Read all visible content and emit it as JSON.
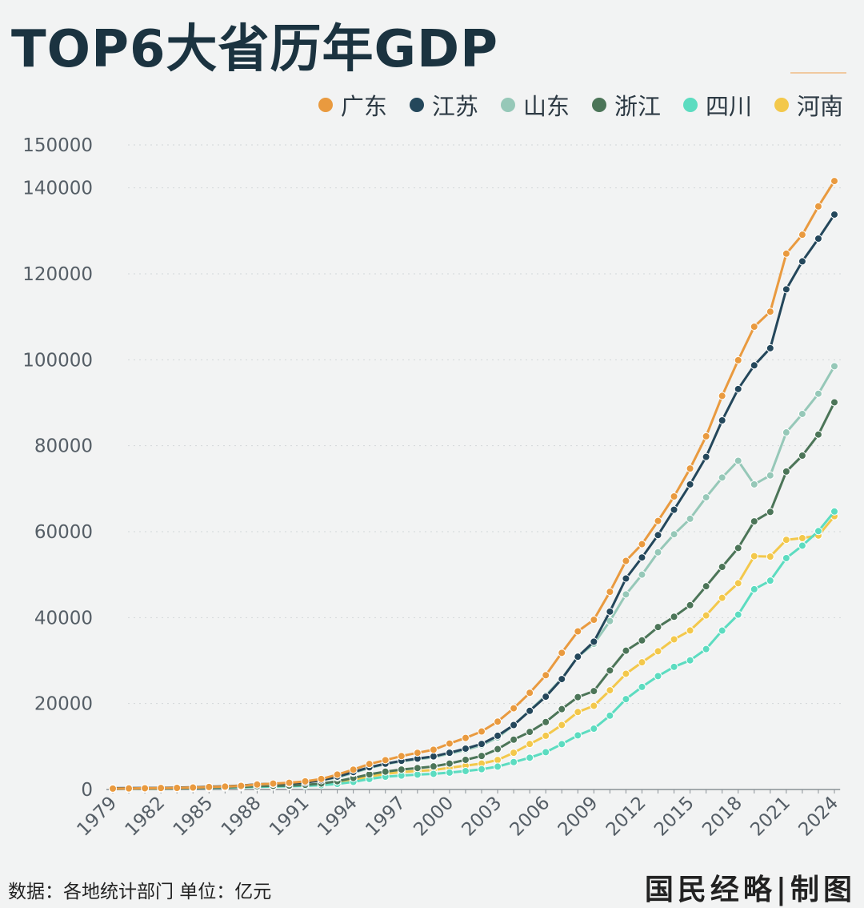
{
  "title": "TOP6大省历年GDP",
  "footer": {
    "source": "数据：各地统计部门  单位：亿元",
    "brand": "国民经略|制图"
  },
  "chart_data": {
    "type": "line",
    "title": "TOP6大省历年GDP",
    "xlabel": "",
    "ylabel": "",
    "ylim": [
      0,
      150000
    ],
    "yticks": [
      0,
      20000,
      40000,
      60000,
      80000,
      100000,
      120000,
      140000,
      150000
    ],
    "x_tick_labels": [
      "1979",
      "1982",
      "1985",
      "1988",
      "1991",
      "1994",
      "1997",
      "2000",
      "2003",
      "2006",
      "2009",
      "2012",
      "2015",
      "2018",
      "2021",
      "2024"
    ],
    "grid": "horizontal dotted",
    "legend_position": "top-right",
    "x": [
      1979,
      1980,
      1981,
      1982,
      1983,
      1984,
      1985,
      1986,
      1987,
      1988,
      1989,
      1990,
      1991,
      1992,
      1993,
      1994,
      1995,
      1996,
      1997,
      1998,
      1999,
      2000,
      2001,
      2002,
      2003,
      2004,
      2005,
      2006,
      2007,
      2008,
      2009,
      2010,
      2011,
      2012,
      2013,
      2014,
      2015,
      2016,
      2017,
      2018,
      2019,
      2020,
      2021,
      2022,
      2023,
      2024
    ],
    "series": [
      {
        "name": "广东",
        "color": "#e99a3f",
        "values": [
          210,
          250,
          290,
          340,
          370,
          460,
          580,
          670,
          850,
          1160,
          1380,
          1560,
          1890,
          2450,
          3470,
          4620,
          5930,
          6830,
          7770,
          8530,
          9250,
          10700,
          12000,
          13500,
          15800,
          18900,
          22500,
          26600,
          31800,
          36800,
          39500,
          46000,
          53200,
          57100,
          62500,
          68200,
          74700,
          82200,
          91600,
          99900,
          107700,
          111200,
          124700,
          129100,
          135700,
          141600
        ]
      },
      {
        "name": "江苏",
        "color": "#24475b",
        "values": [
          300,
          320,
          350,
          380,
          440,
          520,
          650,
          740,
          920,
          1210,
          1320,
          1420,
          1600,
          2140,
          2990,
          4060,
          5160,
          6000,
          6680,
          7200,
          7700,
          8550,
          9510,
          10600,
          12500,
          15000,
          18300,
          21600,
          25700,
          30900,
          34400,
          41400,
          49100,
          54000,
          59200,
          65100,
          71000,
          77400,
          85900,
          93200,
          98700,
          102700,
          116400,
          122900,
          128200,
          133800
        ]
      },
      {
        "name": "山东",
        "color": "#96c8b8",
        "values": [
          220,
          250,
          290,
          320,
          370,
          460,
          570,
          680,
          810,
          1120,
          1290,
          1510,
          1810,
          2200,
          2770,
          3870,
          5000,
          5880,
          6540,
          7020,
          7490,
          8340,
          9200,
          10300,
          12100,
          15000,
          18400,
          21900,
          25800,
          30900,
          33900,
          39200,
          45400,
          50000,
          55200,
          59400,
          63000,
          68000,
          72600,
          76500,
          71000,
          73100,
          83100,
          87400,
          92100,
          98500
        ]
      },
      {
        "name": "浙江",
        "color": "#4c7558",
        "values": [
          150,
          180,
          200,
          230,
          260,
          320,
          430,
          500,
          600,
          770,
          850,
          900,
          1090,
          1380,
          1920,
          2690,
          3520,
          4150,
          4640,
          4990,
          5370,
          6040,
          6900,
          7800,
          9400,
          11600,
          13400,
          15700,
          18700,
          21500,
          22900,
          27700,
          32300,
          34700,
          37800,
          40200,
          42900,
          47300,
          51800,
          56200,
          62400,
          64600,
          74000,
          77700,
          82600,
          90100
        ]
      },
      {
        "name": "四川",
        "color": "#5cdcc0",
        "values": [
          180,
          200,
          220,
          240,
          270,
          320,
          400,
          440,
          500,
          620,
          680,
          750,
          840,
          1010,
          1300,
          1770,
          2440,
          2980,
          3240,
          3470,
          3640,
          3930,
          4290,
          4720,
          5330,
          6380,
          7390,
          8690,
          10560,
          12600,
          14150,
          17190,
          21030,
          23870,
          26390,
          28540,
          30050,
          32680,
          36980,
          40680,
          46600,
          48600,
          53850,
          56750,
          60130,
          64700
        ]
      },
      {
        "name": "河南",
        "color": "#f3c84b",
        "values": [
          190,
          220,
          250,
          270,
          320,
          370,
          450,
          500,
          610,
          750,
          810,
          930,
          1050,
          1280,
          1660,
          2220,
          3000,
          3640,
          4040,
          4310,
          4520,
          5050,
          5530,
          6040,
          6870,
          8550,
          10590,
          12500,
          15010,
          18020,
          19480,
          23090,
          26930,
          29600,
          32160,
          34940,
          37000,
          40500,
          44600,
          48000,
          54300,
          54200,
          58100,
          58500,
          59100,
          63600
        ]
      }
    ]
  }
}
